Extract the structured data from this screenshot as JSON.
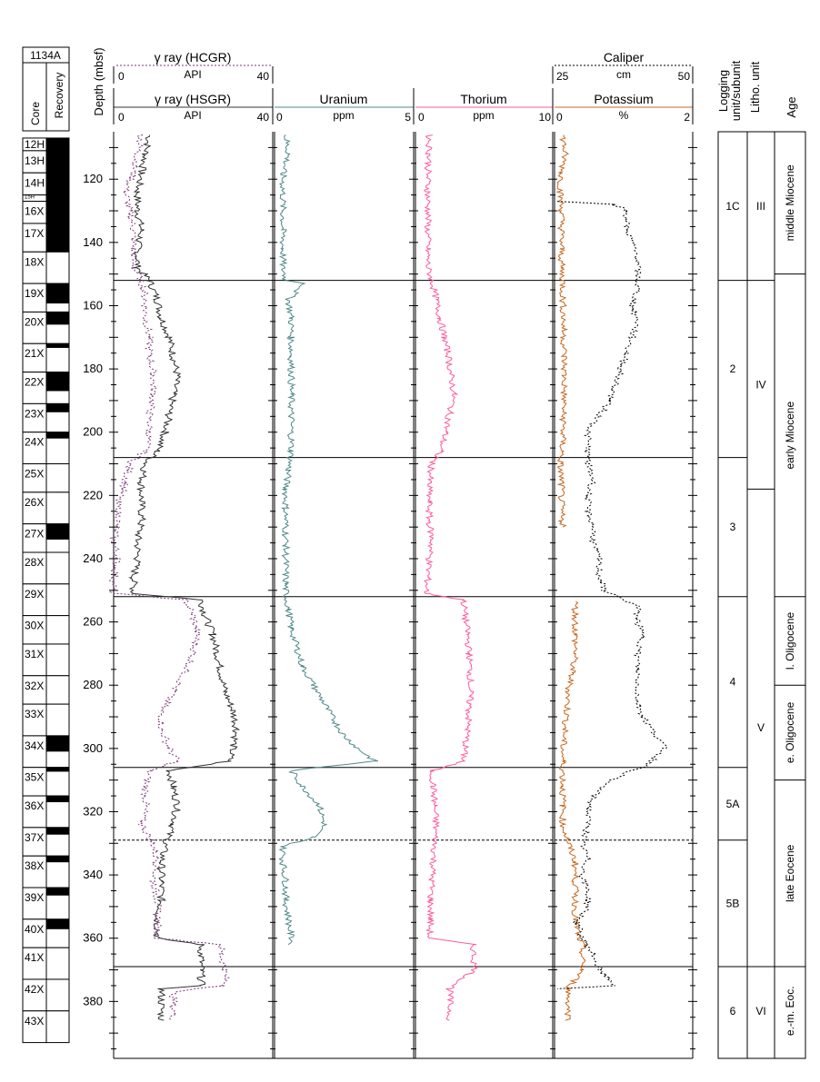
{
  "site": "1134A",
  "headers": {
    "core": "Core",
    "recovery": "Recovery",
    "depth": "Depth (mbsf)",
    "hcgr_title": "γ ray (HCGR)",
    "hcgr_min": "0",
    "hcgr_unit": "API",
    "hcgr_max": "40",
    "hsgr_title": "γ ray (HSGR)",
    "hsgr_min": "0",
    "hsgr_unit": "API",
    "hsgr_max": "40",
    "uranium_title": "Uranium",
    "uranium_min": "0",
    "uranium_unit": "ppm",
    "uranium_max": "5",
    "thorium_title": "Thorium",
    "thorium_min": "0",
    "thorium_unit": "ppm",
    "thorium_max": "10",
    "caliper_title": "Caliper",
    "caliper_min": "25",
    "caliper_unit": "cm",
    "caliper_max": "50",
    "potassium_title": "Potassium",
    "potassium_min": "0",
    "potassium_unit": "%",
    "potassium_max": "2",
    "logging_unit_line1": "Logging",
    "logging_unit_line2": "unit/subunit",
    "litho_unit": "Litho. unit",
    "age": "Age"
  },
  "cores": [
    {
      "label": "12H",
      "top": 107,
      "bottom": 111,
      "recovered": 1.0
    },
    {
      "label": "13H",
      "top": 111,
      "bottom": 118,
      "recovered": 1.0
    },
    {
      "label": "14H",
      "top": 118,
      "bottom": 125,
      "recovered": 1.0
    },
    {
      "label": "15H",
      "top": 125,
      "bottom": 127,
      "recovered": 1.0
    },
    {
      "label": "16X",
      "top": 127,
      "bottom": 134,
      "recovered": 1.0
    },
    {
      "label": "17X",
      "top": 134,
      "bottom": 143,
      "recovered": 1.0
    },
    {
      "label": "18X",
      "top": 143,
      "bottom": 153,
      "recovered": 0.0
    },
    {
      "label": "19X",
      "top": 153,
      "bottom": 162,
      "recovered": 0.7
    },
    {
      "label": "20X",
      "top": 162,
      "bottom": 172,
      "recovered": 0.4
    },
    {
      "label": "21X",
      "top": 172,
      "bottom": 181,
      "recovered": 0.15
    },
    {
      "label": "22X",
      "top": 181,
      "bottom": 191,
      "recovered": 0.6
    },
    {
      "label": "23X",
      "top": 191,
      "bottom": 200,
      "recovered": 0.3
    },
    {
      "label": "24X",
      "top": 200,
      "bottom": 210,
      "recovered": 0.2
    },
    {
      "label": "25X",
      "top": 210,
      "bottom": 219,
      "recovered": 0.0
    },
    {
      "label": "26X",
      "top": 219,
      "bottom": 229,
      "recovered": 0.0
    },
    {
      "label": "27X",
      "top": 229,
      "bottom": 238,
      "recovered": 0.55
    },
    {
      "label": "28X",
      "top": 238,
      "bottom": 248,
      "recovered": 0.0
    },
    {
      "label": "29X",
      "top": 248,
      "bottom": 258,
      "recovered": 0.0
    },
    {
      "label": "30X",
      "top": 258,
      "bottom": 267,
      "recovered": 0.0
    },
    {
      "label": "31X",
      "top": 267,
      "bottom": 277,
      "recovered": 0.0
    },
    {
      "label": "32X",
      "top": 277,
      "bottom": 286,
      "recovered": 0.0
    },
    {
      "label": "33X",
      "top": 286,
      "bottom": 296,
      "recovered": 0.0
    },
    {
      "label": "34X",
      "top": 296,
      "bottom": 306,
      "recovered": 0.5
    },
    {
      "label": "35X",
      "top": 306,
      "bottom": 315,
      "recovered": 0.15
    },
    {
      "label": "36X",
      "top": 315,
      "bottom": 325,
      "recovered": 0.2
    },
    {
      "label": "37X",
      "top": 325,
      "bottom": 334,
      "recovered": 0.25
    },
    {
      "label": "38X",
      "top": 334,
      "bottom": 344,
      "recovered": 0.2
    },
    {
      "label": "39X",
      "top": 344,
      "bottom": 354,
      "recovered": 0.25
    },
    {
      "label": "40X",
      "top": 354,
      "bottom": 363,
      "recovered": 0.35
    },
    {
      "label": "41X",
      "top": 363,
      "bottom": 373,
      "recovered": 0.0
    },
    {
      "label": "42X",
      "top": 373,
      "bottom": 383,
      "recovered": 0.0
    },
    {
      "label": "43X",
      "top": 383,
      "bottom": 393,
      "recovered": 0.0
    }
  ],
  "logging_units": [
    {
      "label": "1C",
      "top": 105,
      "bottom": 152
    },
    {
      "label": "2",
      "top": 152,
      "bottom": 208
    },
    {
      "label": "3",
      "top": 208,
      "bottom": 252
    },
    {
      "label": "4",
      "top": 252,
      "bottom": 306
    },
    {
      "label": "5A",
      "top": 306,
      "bottom": 329
    },
    {
      "label": "5B",
      "top": 329,
      "bottom": 369
    },
    {
      "label": "6",
      "top": 369,
      "bottom": 397
    }
  ],
  "litho_units": [
    {
      "label": "III",
      "top": 105,
      "bottom": 152
    },
    {
      "label": "IV",
      "top": 152,
      "bottom": 218
    },
    {
      "label": "V",
      "top": 218,
      "bottom": 369
    },
    {
      "label": "VI",
      "top": 369,
      "bottom": 397
    }
  ],
  "ages": [
    {
      "label": "middle Miocene",
      "top": 105,
      "bottom": 150
    },
    {
      "label": "early Miocene",
      "top": 150,
      "bottom": 252
    },
    {
      "label": "l. Oligocene",
      "top": 252,
      "bottom": 280
    },
    {
      "label": "e. Oligocene",
      "top": 280,
      "bottom": 310
    },
    {
      "label": "late Eocene",
      "top": 310,
      "bottom": 369
    },
    {
      "label": "e.-m. Eoc.",
      "top": 369,
      "bottom": 397
    }
  ],
  "chart_data": {
    "type": "line",
    "title": "",
    "ylabel": "Depth (mbsf)",
    "ylim": [
      105,
      398
    ],
    "y_inverted": true,
    "y_ticks": [
      120,
      140,
      160,
      180,
      200,
      220,
      240,
      260,
      280,
      300,
      320,
      340,
      360,
      380
    ],
    "boundaries_solid": [
      152,
      208,
      252,
      306,
      369
    ],
    "boundaries_dashed": [
      329
    ],
    "tracks": [
      {
        "name": "gamma",
        "xlim": [
          0,
          40
        ],
        "series": [
          {
            "name": "γ ray (HSGR)",
            "color": "#333333",
            "dashed": false,
            "depth": [
              106,
              112,
              118,
              124,
              130,
              136,
              142,
              148,
              152,
              158,
              164,
              170,
              176,
              182,
              188,
              194,
              200,
              206,
              210,
              216,
              222,
              228,
              234,
              240,
              246,
              251,
              253,
              258,
              264,
              270,
              276,
              282,
              288,
              294,
              300,
              304,
              307,
              312,
              318,
              324,
              330,
              336,
              342,
              348,
              354,
              360,
              362,
              365,
              370,
              375,
              376,
              386
            ],
            "values": [
              9,
              8,
              7,
              6,
              6,
              7,
              6,
              6,
              9,
              11,
              12,
              14,
              15,
              16,
              15,
              14,
              13,
              11,
              8,
              7,
              7,
              7,
              6,
              6,
              5,
              5,
              22,
              23,
              25,
              26,
              27,
              28,
              30,
              31,
              30,
              29,
              14,
              15,
              16,
              15,
              13,
              12,
              12,
              12,
              11,
              11,
              22,
              22,
              22,
              22,
              12,
              12
            ]
          },
          {
            "name": "γ ray (HCGR)",
            "color": "#7a3a7a",
            "dashed": true,
            "depth": [
              106,
              112,
              118,
              124,
              130,
              136,
              142,
              148,
              152,
              158,
              164,
              170,
              176,
              182,
              188,
              194,
              200,
              206,
              210,
              216,
              222,
              228,
              234,
              240,
              246,
              251,
              253,
              258,
              264,
              270,
              276,
              282,
              288,
              294,
              300,
              304,
              307,
              312,
              318,
              324,
              330,
              336,
              342,
              348,
              354,
              360,
              362,
              365,
              370,
              375,
              377,
              386
            ],
            "values": [
              7,
              6,
              5,
              3,
              4,
              5,
              5,
              5,
              7,
              8,
              8,
              9,
              9,
              10,
              10,
              9,
              9,
              8,
              4,
              3,
              1,
              1,
              0,
              1,
              0,
              0,
              18,
              20,
              21,
              20,
              18,
              15,
              12,
              12,
              14,
              16,
              9,
              8,
              8,
              7,
              10,
              11,
              10,
              11,
              11,
              11,
              27,
              27,
              28,
              28,
              15,
              15
            ]
          }
        ]
      },
      {
        "name": "uranium",
        "xlim": [
          0,
          5
        ],
        "series": [
          {
            "name": "Uranium",
            "color": "#4f8a8b",
            "dashed": false,
            "depth": [
              106,
              112,
              118,
              124,
              130,
              136,
              142,
              148,
              152,
              153,
              158,
              164,
              170,
              176,
              182,
              188,
              194,
              200,
              206,
              212,
              218,
              224,
              230,
              236,
              242,
              248,
              251,
              256,
              262,
              268,
              274,
              280,
              286,
              292,
              296,
              300,
              304,
              307,
              312,
              318,
              324,
              328,
              331,
              336,
              342,
              348,
              354,
              360,
              362
            ],
            "values": [
              0.4,
              0.5,
              0.3,
              0.3,
              0.3,
              0.3,
              0.3,
              0.3,
              0.4,
              1.1,
              0.5,
              0.6,
              0.6,
              0.6,
              0.6,
              0.6,
              0.6,
              0.6,
              0.6,
              0.5,
              0.4,
              0.4,
              0.4,
              0.4,
              0.4,
              0.4,
              0.4,
              0.5,
              0.6,
              0.8,
              1.0,
              1.4,
              1.8,
              2.2,
              2.5,
              3.0,
              3.6,
              0.6,
              1.0,
              1.6,
              1.8,
              1.4,
              0.3,
              0.3,
              0.4,
              0.4,
              0.5,
              0.6,
              0.6
            ]
          }
        ]
      },
      {
        "name": "thorium",
        "xlim": [
          0,
          10
        ],
        "series": [
          {
            "name": "Thorium",
            "color": "#ff5a9a",
            "dashed": false,
            "depth": [
              106,
              112,
              118,
              124,
              130,
              136,
              142,
              148,
              152,
              158,
              164,
              170,
              176,
              182,
              188,
              194,
              200,
              206,
              210,
              216,
              222,
              228,
              234,
              240,
              246,
              251,
              253,
              258,
              264,
              270,
              276,
              282,
              288,
              294,
              300,
              304,
              307,
              312,
              318,
              324,
              330,
              336,
              342,
              348,
              354,
              360,
              362,
              370,
              376,
              386
            ],
            "values": [
              1.0,
              1.0,
              0.9,
              0.9,
              0.9,
              0.9,
              0.9,
              0.9,
              1.2,
              1.5,
              1.8,
              2.1,
              2.4,
              2.6,
              2.8,
              2.5,
              2.2,
              1.8,
              1.2,
              1.0,
              1.0,
              1.0,
              1.2,
              1.0,
              0.9,
              0.8,
              3.5,
              3.6,
              3.8,
              3.9,
              4.0,
              4.0,
              3.9,
              3.8,
              3.6,
              3.5,
              1.2,
              1.3,
              1.4,
              1.5,
              1.4,
              1.3,
              1.2,
              1.1,
              1.1,
              1.0,
              4.2,
              4.3,
              2.5,
              2.5
            ]
          }
        ]
      },
      {
        "name": "potassium_caliper",
        "xlim": [
          0,
          2
        ],
        "series": [
          {
            "name": "Potassium",
            "color": "#c8681e",
            "dashed": false,
            "depth": [
              106,
              112,
              118,
              124,
              130,
              136,
              142,
              148,
              152,
              158,
              164,
              170,
              176,
              182,
              188,
              194,
              200,
              206,
              210,
              216,
              222,
              228,
              230,
              251,
              253,
              258,
              264,
              270,
              276,
              282,
              288,
              294,
              300,
              304,
              307,
              312,
              318,
              324,
              330,
              336,
              342,
              348,
              354,
              360,
              362,
              370,
              376,
              386
            ],
            "values": [
              0.12,
              0.15,
              0.1,
              0.08,
              0.1,
              0.1,
              0.1,
              0.1,
              0.12,
              0.12,
              0.13,
              0.13,
              0.14,
              0.14,
              0.14,
              0.13,
              0.12,
              0.11,
              0.08,
              0.1,
              0.1,
              0.1,
              0.15,
              null,
              0.3,
              0.3,
              0.3,
              0.3,
              0.25,
              0.2,
              0.18,
              0.15,
              0.12,
              0.12,
              0.12,
              0.12,
              0.12,
              0.12,
              0.2,
              0.3,
              0.3,
              0.3,
              0.3,
              0.35,
              0.4,
              0.4,
              0.2,
              0.2
            ]
          },
          {
            "name": "Caliper",
            "color": "#000000",
            "dashed": true,
            "xlim": [
              25,
              50
            ],
            "depth": [
              127,
              128,
              130,
              135,
              140,
              145,
              150,
              155,
              160,
              165,
              170,
              175,
              180,
              185,
              190,
              195,
              200,
              205,
              210,
              215,
              220,
              225,
              230,
              235,
              240,
              245,
              250,
              255,
              260,
              265,
              270,
              275,
              280,
              285,
              290,
              295,
              300,
              305,
              310,
              315,
              320,
              325,
              330,
              335,
              340,
              345,
              350,
              355,
              360,
              365,
              370,
              375,
              376
            ],
            "values": [
              25.5,
              36,
              38,
              38,
              39,
              40,
              40,
              40,
              39,
              40,
              39,
              38,
              37,
              36,
              35,
              33,
              31,
              31,
              31,
              32,
              31,
              31,
              32,
              32,
              33,
              33,
              34,
              40,
              40,
              41,
              40,
              40,
              40,
              40,
              41,
              43,
              45,
              42,
              35,
              32,
              31,
              31,
              30,
              31,
              30,
              31,
              31,
              29,
              30,
              32,
              33,
              36,
              25.5
            ]
          }
        ]
      }
    ]
  }
}
